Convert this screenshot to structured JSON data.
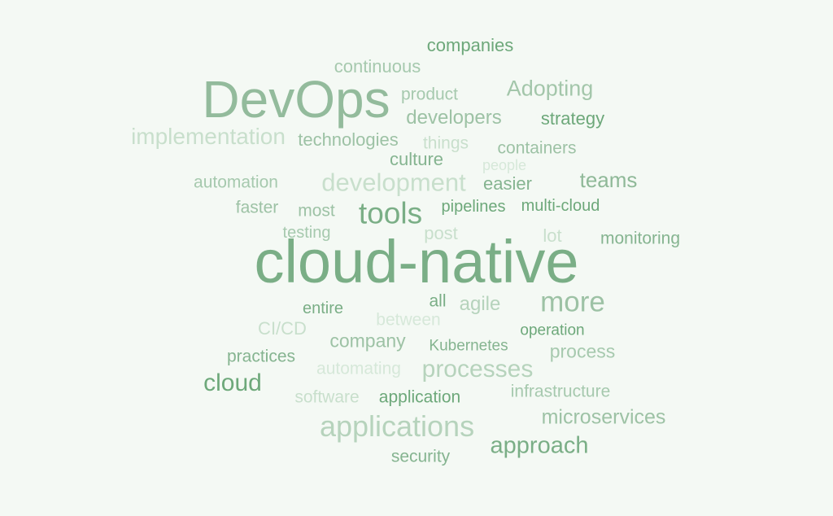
{
  "background_color": "#f4f9f4",
  "words": [
    {
      "text": "companies",
      "color": "#6da87a"
    },
    {
      "text": "continuous",
      "color": "#a6c9ae"
    },
    {
      "text": "DevOps",
      "color": "#93bb9c"
    },
    {
      "text": "product",
      "color": "#a6c9ae"
    },
    {
      "text": "Adopting",
      "color": "#a3c6aa"
    },
    {
      "text": "developers",
      "color": "#9dc2a5"
    },
    {
      "text": "strategy",
      "color": "#6da87a"
    },
    {
      "text": "implementation",
      "color": "#c8dfcc"
    },
    {
      "text": "technologies",
      "color": "#9dc2a5"
    },
    {
      "text": "things",
      "color": "#c8dfcc"
    },
    {
      "text": "containers",
      "color": "#9dc2a5"
    },
    {
      "text": "culture",
      "color": "#85b490"
    },
    {
      "text": "people",
      "color": "#d6e8d9"
    },
    {
      "text": "automation",
      "color": "#a6c9ae"
    },
    {
      "text": "development",
      "color": "#c8dfcc"
    },
    {
      "text": "easier",
      "color": "#85b490"
    },
    {
      "text": "teams",
      "color": "#8fb998"
    },
    {
      "text": "faster",
      "color": "#9dc2a5"
    },
    {
      "text": "most",
      "color": "#9dc2a5"
    },
    {
      "text": "tools",
      "color": "#7aae86"
    },
    {
      "text": "pipelines",
      "color": "#6da87a"
    },
    {
      "text": "multi-cloud",
      "color": "#6da87a"
    },
    {
      "text": "testing",
      "color": "#a6c9ae"
    },
    {
      "text": "post",
      "color": "#c8dfcc"
    },
    {
      "text": "lot",
      "color": "#c8dfcc"
    },
    {
      "text": "monitoring",
      "color": "#85b490"
    },
    {
      "text": "cloud-native",
      "color": "#7aae86"
    },
    {
      "text": "all",
      "color": "#7aae86"
    },
    {
      "text": "agile",
      "color": "#b6d3bc"
    },
    {
      "text": "more",
      "color": "#9dc2a5"
    },
    {
      "text": "entire",
      "color": "#7aae86"
    },
    {
      "text": "between",
      "color": "#d6e8d9"
    },
    {
      "text": "CI/CD",
      "color": "#c8dfcc"
    },
    {
      "text": "company",
      "color": "#9dc2a5"
    },
    {
      "text": "operation",
      "color": "#6da87a"
    },
    {
      "text": "Kubernetes",
      "color": "#85b490"
    },
    {
      "text": "process",
      "color": "#a6c9ae"
    },
    {
      "text": "practices",
      "color": "#85b490"
    },
    {
      "text": "automating",
      "color": "#d6e8d9"
    },
    {
      "text": "processes",
      "color": "#b6d3bc"
    },
    {
      "text": "cloud",
      "color": "#6da87a"
    },
    {
      "text": "software",
      "color": "#c8dfcc"
    },
    {
      "text": "application",
      "color": "#6da87a"
    },
    {
      "text": "infrastructure",
      "color": "#a6c9ae"
    },
    {
      "text": "applications",
      "color": "#b6d3bc"
    },
    {
      "text": "microservices",
      "color": "#9dc2a5"
    },
    {
      "text": "approach",
      "color": "#7aae86"
    },
    {
      "text": "security",
      "color": "#85b490"
    }
  ]
}
